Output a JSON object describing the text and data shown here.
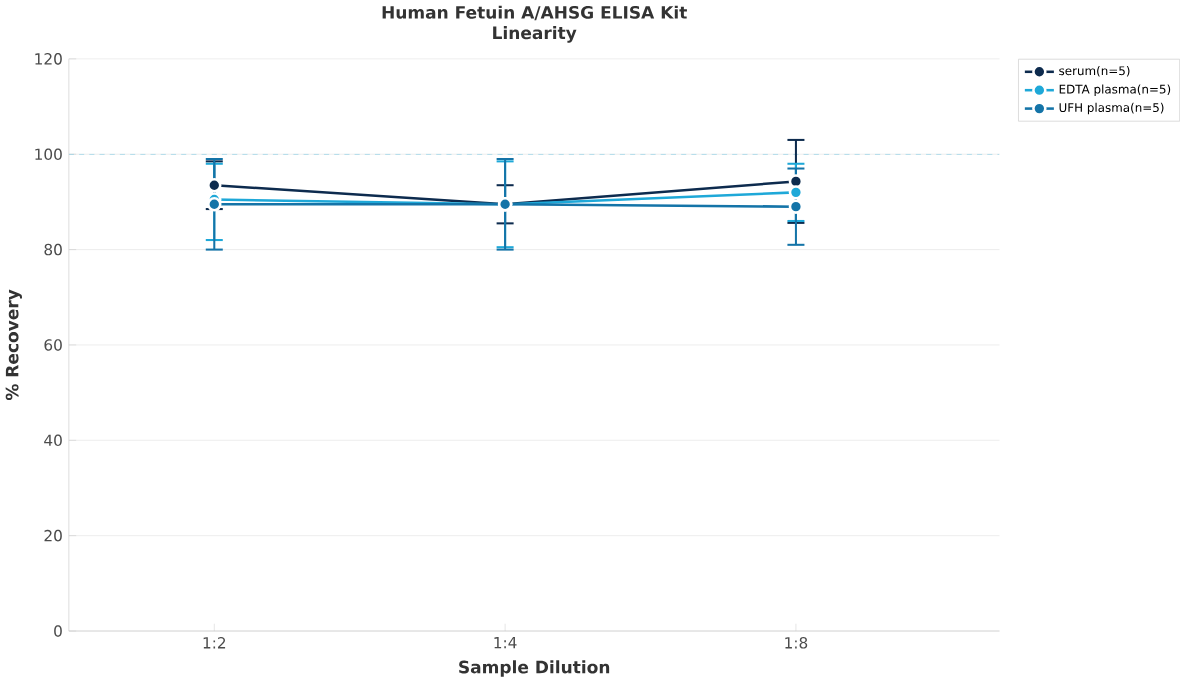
{
  "chart_data": {
    "type": "line",
    "title": "Human Fetuin A/AHSG ELISA Kit",
    "subtitle": "Linearity",
    "xlabel": "Sample Dilution",
    "ylabel": "% Recovery",
    "categories": [
      "1:2",
      "1:4",
      "1:8"
    ],
    "series": [
      {
        "name": "serum(n=5)",
        "color": "#0d2b4e",
        "values": [
          93.5,
          89.5,
          94.3
        ],
        "errors": [
          5,
          4,
          8.7
        ]
      },
      {
        "name": "EDTA plasma(n=5)",
        "color": "#1ea8d8",
        "values": [
          90.5,
          89.5,
          92
        ],
        "errors": [
          [
            82,
            98
          ],
          9,
          6
        ]
      },
      {
        "name": "UFH plasma(n=5)",
        "color": "#1474a8",
        "values": [
          89.5,
          89.5,
          89
        ],
        "errors": [
          9.5,
          9.5,
          8
        ]
      }
    ],
    "ylim": [
      0,
      120
    ],
    "yticks": [
      0,
      20,
      40,
      60,
      80,
      100,
      120
    ],
    "grid": "y",
    "legend": "top right",
    "marker": "circle",
    "line_style": "solid",
    "ref_lines": [
      {
        "axis": "y",
        "value": 100,
        "color": "#7ecbe6",
        "line_style": "dashed"
      }
    ]
  }
}
